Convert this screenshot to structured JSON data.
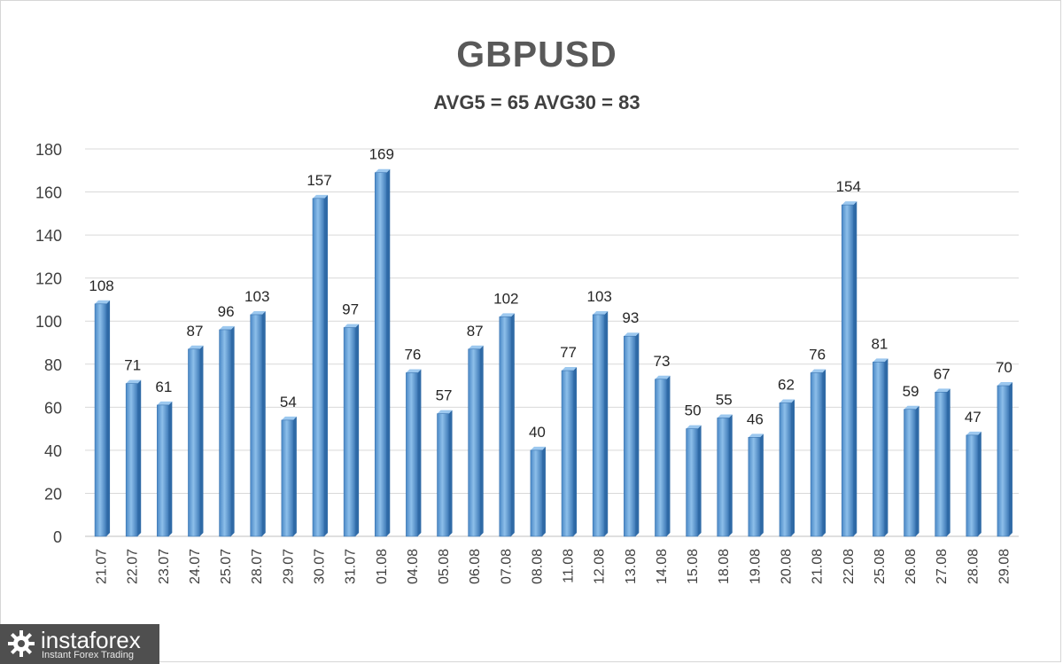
{
  "chart_data": {
    "type": "bar",
    "title": "GBPUSD",
    "subtitle": "AVG5 = 65 AVG30 = 83",
    "categories": [
      "21.07",
      "22.07",
      "23.07",
      "24.07",
      "25.07",
      "28.07",
      "29.07",
      "30.07",
      "31.07",
      "01.08",
      "04.08",
      "05.08",
      "06.08",
      "07.08",
      "08.08",
      "11.08",
      "12.08",
      "13.08",
      "14.08",
      "15.08",
      "18.08",
      "19.08",
      "20.08",
      "21.08",
      "22.08",
      "25.08",
      "26.08",
      "27.08",
      "28.08",
      "29.08"
    ],
    "values": [
      108,
      71,
      61,
      87,
      96,
      103,
      54,
      157,
      97,
      169,
      76,
      57,
      87,
      102,
      40,
      77,
      103,
      93,
      73,
      50,
      55,
      46,
      62,
      76,
      154,
      81,
      59,
      67,
      47,
      70
    ],
    "ylim": [
      0,
      180
    ],
    "yticks": [
      0,
      20,
      40,
      60,
      80,
      100,
      120,
      140,
      160,
      180
    ],
    "grid": true,
    "data_labels": true,
    "bar_color": "#5b9bd5"
  },
  "watermark": {
    "name": "instaforex",
    "tagline": "Instant Forex Trading"
  }
}
